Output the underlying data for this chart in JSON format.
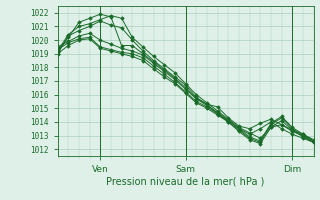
{
  "title": "Pression niveau de la mer( hPa )",
  "ylabel_values": [
    1012,
    1013,
    1014,
    1015,
    1016,
    1017,
    1018,
    1019,
    1020,
    1021,
    1022
  ],
  "ylim": [
    1011.5,
    1022.5
  ],
  "xlim": [
    0,
    96
  ],
  "xtick_positions": [
    16,
    48,
    88
  ],
  "xtick_labels": [
    "Ven",
    "Sam",
    "Dim"
  ],
  "background_color": "#dff0e8",
  "grid_color": "#aacfbb",
  "line_color": "#1a6b2a",
  "series": [
    [
      0,
      1019.0,
      4,
      1020.3,
      8,
      1020.7,
      12,
      1021.0,
      16,
      1021.4,
      20,
      1021.1,
      24,
      1020.9,
      28,
      1020.0,
      32,
      1019.2,
      36,
      1018.5,
      40,
      1017.9,
      44,
      1017.3,
      48,
      1016.7,
      52,
      1015.8,
      56,
      1015.3,
      60,
      1014.6,
      64,
      1014.1,
      68,
      1013.5,
      72,
      1013.1,
      76,
      1013.5,
      80,
      1014.0,
      84,
      1013.5,
      88,
      1013.1,
      92,
      1012.8,
      96,
      1012.5
    ],
    [
      0,
      1019.2,
      4,
      1020.4,
      8,
      1021.0,
      12,
      1021.2,
      16,
      1021.5,
      20,
      1021.8,
      24,
      1021.6,
      28,
      1020.2,
      32,
      1019.5,
      36,
      1018.8,
      40,
      1018.2,
      44,
      1017.6,
      48,
      1016.8,
      52,
      1016.0,
      56,
      1015.4,
      60,
      1014.8,
      64,
      1014.2,
      68,
      1013.6,
      72,
      1013.2,
      76,
      1012.8,
      80,
      1013.6,
      84,
      1013.8,
      88,
      1013.3,
      92,
      1013.0,
      96,
      1012.6
    ],
    [
      0,
      1019.1,
      4,
      1020.2,
      8,
      1021.3,
      12,
      1021.6,
      16,
      1021.9,
      20,
      1021.7,
      24,
      1019.6,
      28,
      1019.6,
      32,
      1019.0,
      36,
      1018.4,
      40,
      1017.8,
      44,
      1017.2,
      48,
      1016.5,
      52,
      1015.7,
      56,
      1015.3,
      60,
      1015.1,
      64,
      1014.3,
      68,
      1013.7,
      72,
      1013.5,
      76,
      1013.9,
      80,
      1014.2,
      84,
      1013.8,
      88,
      1013.4,
      92,
      1013.1,
      96,
      1012.7
    ],
    [
      0,
      1019.3,
      4,
      1019.8,
      8,
      1020.1,
      12,
      1020.2,
      16,
      1019.5,
      20,
      1019.3,
      24,
      1019.1,
      28,
      1019.0,
      32,
      1018.7,
      36,
      1018.1,
      40,
      1017.5,
      44,
      1016.9,
      48,
      1016.2,
      52,
      1015.5,
      56,
      1015.1,
      60,
      1014.6,
      64,
      1014.0,
      68,
      1013.4,
      72,
      1012.8,
      76,
      1012.5,
      80,
      1013.8,
      84,
      1014.3,
      88,
      1013.5,
      92,
      1013.0,
      96,
      1012.5
    ],
    [
      0,
      1019.0,
      4,
      1019.6,
      8,
      1020.0,
      12,
      1020.1,
      16,
      1019.4,
      20,
      1019.2,
      24,
      1019.0,
      28,
      1018.8,
      32,
      1018.5,
      36,
      1017.9,
      40,
      1017.3,
      44,
      1016.8,
      48,
      1016.1,
      52,
      1015.4,
      56,
      1015.0,
      60,
      1014.5,
      64,
      1014.0,
      68,
      1013.3,
      72,
      1012.7,
      76,
      1012.4,
      80,
      1013.6,
      84,
      1014.1,
      88,
      1013.4,
      92,
      1012.9,
      96,
      1012.5
    ],
    [
      0,
      1019.5,
      4,
      1019.9,
      8,
      1020.3,
      12,
      1020.5,
      16,
      1020.0,
      20,
      1019.7,
      24,
      1019.4,
      28,
      1019.2,
      32,
      1018.9,
      36,
      1018.3,
      40,
      1017.7,
      44,
      1017.1,
      48,
      1016.4,
      52,
      1015.7,
      56,
      1015.2,
      60,
      1014.7,
      64,
      1014.1,
      68,
      1013.5,
      72,
      1012.9,
      76,
      1012.6,
      80,
      1013.9,
      84,
      1014.4,
      88,
      1013.6,
      92,
      1013.1,
      96,
      1012.6
    ]
  ]
}
